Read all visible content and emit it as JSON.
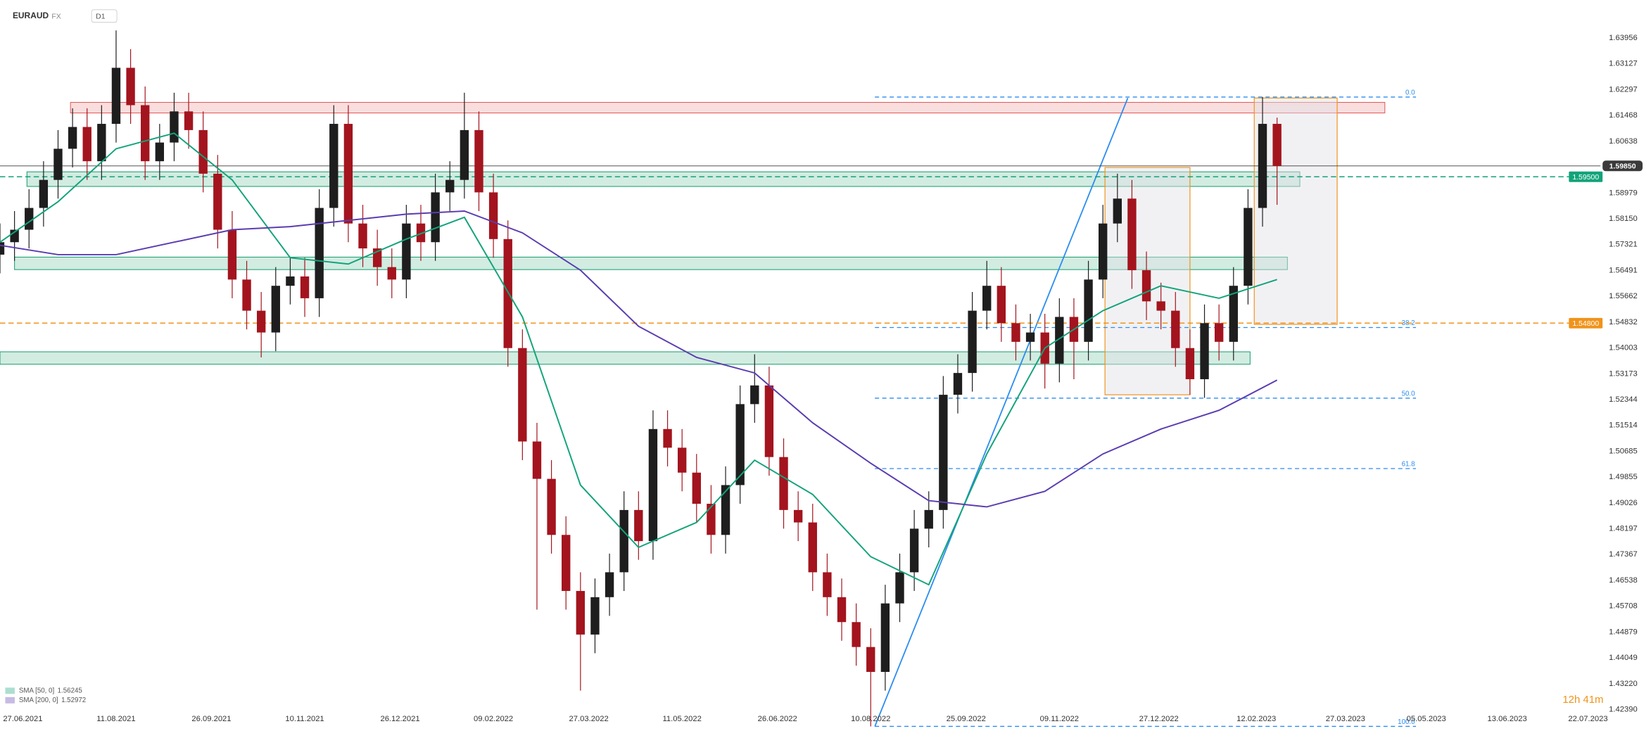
{
  "header": {
    "symbol": "EURAUD",
    "market": "FX",
    "interval": "D1"
  },
  "chart_data": {
    "type": "candlestick",
    "x": [
      "2021-06-16",
      "2021-06-23",
      "2021-06-30",
      "2021-07-07",
      "2021-07-14",
      "2021-07-21",
      "2021-07-28",
      "2021-08-04",
      "2021-08-11",
      "2021-08-18",
      "2021-08-25",
      "2021-09-01",
      "2021-09-08",
      "2021-09-15",
      "2021-09-22",
      "2021-09-29",
      "2021-10-06",
      "2021-10-13",
      "2021-10-20",
      "2021-10-27",
      "2021-11-03",
      "2021-11-10",
      "2021-11-17",
      "2021-11-24",
      "2021-12-01",
      "2021-12-08",
      "2021-12-15",
      "2021-12-22",
      "2021-12-29",
      "2022-01-05",
      "2022-01-12",
      "2022-01-19",
      "2022-01-26",
      "2022-02-02",
      "2022-02-09",
      "2022-02-16",
      "2022-02-23",
      "2022-03-02",
      "2022-03-09",
      "2022-03-16",
      "2022-03-23",
      "2022-03-30",
      "2022-04-06",
      "2022-04-13",
      "2022-04-20",
      "2022-04-27",
      "2022-05-04",
      "2022-05-11",
      "2022-05-18",
      "2022-05-25",
      "2022-06-01",
      "2022-06-08",
      "2022-06-15",
      "2022-06-22",
      "2022-06-29",
      "2022-07-06",
      "2022-07-13",
      "2022-07-20",
      "2022-07-27",
      "2022-08-03",
      "2022-08-10",
      "2022-08-17",
      "2022-08-24",
      "2022-08-31",
      "2022-09-07",
      "2022-09-14",
      "2022-09-21",
      "2022-09-28",
      "2022-10-05",
      "2022-10-12",
      "2022-10-19",
      "2022-10-26",
      "2022-11-02",
      "2022-11-09",
      "2022-11-16",
      "2022-11-23",
      "2022-11-30",
      "2022-12-07",
      "2022-12-14",
      "2022-12-21",
      "2022-12-28",
      "2023-01-04",
      "2023-01-11",
      "2023-01-18",
      "2023-01-25",
      "2023-02-01",
      "2023-02-08",
      "2023-02-15",
      "2023-02-22"
    ],
    "open": [
      1.57,
      1.574,
      1.578,
      1.585,
      1.594,
      1.604,
      1.611,
      1.6,
      1.612,
      1.63,
      1.618,
      1.6,
      1.606,
      1.616,
      1.61,
      1.596,
      1.578,
      1.562,
      1.552,
      1.545,
      1.56,
      1.563,
      1.556,
      1.585,
      1.612,
      1.58,
      1.572,
      1.566,
      1.562,
      1.58,
      1.574,
      1.59,
      1.594,
      1.61,
      1.59,
      1.575,
      1.54,
      1.51,
      1.498,
      1.48,
      1.462,
      1.448,
      1.46,
      1.468,
      1.488,
      1.478,
      1.514,
      1.508,
      1.5,
      1.49,
      1.48,
      1.496,
      1.522,
      1.528,
      1.505,
      1.488,
      1.484,
      1.468,
      1.46,
      1.452,
      1.444,
      1.436,
      1.458,
      1.468,
      1.482,
      1.488,
      1.525,
      1.532,
      1.552,
      1.56,
      1.548,
      1.542,
      1.545,
      1.535,
      1.55,
      1.542,
      1.562,
      1.58,
      1.588,
      1.565,
      1.555,
      1.552,
      1.54,
      1.53,
      1.548,
      1.542,
      1.56,
      1.585,
      1.612
    ],
    "high": [
      1.58,
      1.584,
      1.591,
      1.6,
      1.61,
      1.617,
      1.617,
      1.618,
      1.642,
      1.636,
      1.624,
      1.612,
      1.622,
      1.622,
      1.616,
      1.602,
      1.584,
      1.568,
      1.558,
      1.566,
      1.569,
      1.569,
      1.591,
      1.618,
      1.618,
      1.586,
      1.578,
      1.572,
      1.586,
      1.586,
      1.596,
      1.6,
      1.622,
      1.616,
      1.596,
      1.581,
      1.546,
      1.516,
      1.504,
      1.486,
      1.468,
      1.466,
      1.474,
      1.494,
      1.494,
      1.52,
      1.52,
      1.514,
      1.506,
      1.496,
      1.502,
      1.528,
      1.538,
      1.534,
      1.511,
      1.494,
      1.49,
      1.474,
      1.466,
      1.458,
      1.45,
      1.464,
      1.474,
      1.488,
      1.494,
      1.531,
      1.538,
      1.558,
      1.568,
      1.566,
      1.554,
      1.551,
      1.551,
      1.556,
      1.556,
      1.568,
      1.586,
      1.596,
      1.594,
      1.571,
      1.561,
      1.558,
      1.546,
      1.554,
      1.554,
      1.566,
      1.591,
      1.6206,
      1.614
    ],
    "low": [
      1.564,
      1.568,
      1.572,
      1.579,
      1.588,
      1.598,
      1.594,
      1.594,
      1.606,
      1.612,
      1.594,
      1.594,
      1.6,
      1.604,
      1.59,
      1.572,
      1.556,
      1.546,
      1.537,
      1.539,
      1.554,
      1.55,
      1.55,
      1.579,
      1.574,
      1.566,
      1.56,
      1.556,
      1.556,
      1.568,
      1.568,
      1.584,
      1.588,
      1.584,
      1.569,
      1.534,
      1.504,
      1.456,
      1.474,
      1.456,
      1.43,
      1.442,
      1.454,
      1.462,
      1.472,
      1.472,
      1.502,
      1.494,
      1.484,
      1.474,
      1.474,
      1.49,
      1.516,
      1.499,
      1.482,
      1.478,
      1.462,
      1.454,
      1.446,
      1.438,
      1.4185,
      1.43,
      1.452,
      1.462,
      1.476,
      1.482,
      1.519,
      1.526,
      1.546,
      1.542,
      1.536,
      1.536,
      1.527,
      1.529,
      1.53,
      1.536,
      1.556,
      1.574,
      1.559,
      1.549,
      1.546,
      1.534,
      1.525,
      1.524,
      1.536,
      1.536,
      1.554,
      1.579,
      1.586
    ],
    "close": [
      1.574,
      1.578,
      1.585,
      1.594,
      1.604,
      1.611,
      1.6,
      1.612,
      1.63,
      1.618,
      1.6,
      1.606,
      1.616,
      1.61,
      1.596,
      1.578,
      1.562,
      1.552,
      1.545,
      1.56,
      1.563,
      1.556,
      1.585,
      1.612,
      1.58,
      1.572,
      1.566,
      1.562,
      1.58,
      1.574,
      1.59,
      1.594,
      1.61,
      1.59,
      1.575,
      1.54,
      1.51,
      1.498,
      1.48,
      1.462,
      1.448,
      1.46,
      1.468,
      1.488,
      1.478,
      1.514,
      1.508,
      1.5,
      1.49,
      1.48,
      1.496,
      1.522,
      1.528,
      1.505,
      1.488,
      1.484,
      1.468,
      1.46,
      1.452,
      1.444,
      1.436,
      1.458,
      1.468,
      1.482,
      1.488,
      1.525,
      1.532,
      1.552,
      1.56,
      1.548,
      1.542,
      1.545,
      1.535,
      1.55,
      1.542,
      1.562,
      1.58,
      1.588,
      1.565,
      1.555,
      1.552,
      1.54,
      1.53,
      1.548,
      1.542,
      1.56,
      1.585,
      1.612,
      1.5985
    ],
    "up_color": "#1e1e1e",
    "down_color": "#a3141e",
    "ylim": [
      1.4171,
      1.6517
    ],
    "yticks": [
      1.63956,
      1.63127,
      1.62297,
      1.61468,
      1.60638,
      1.58979,
      {
        "value": 1.5815,
        "label": "1.58150"
      },
      1.57321,
      1.56491,
      1.55662,
      1.54832,
      1.54003,
      1.53173,
      1.52344,
      1.51514,
      1.50685,
      1.49855,
      1.49026,
      1.48197,
      1.47367,
      1.46538,
      1.45708,
      1.44879,
      1.44049,
      {
        "value": 1.4322,
        "label": "1.43220"
      },
      {
        "value": 1.4239,
        "label": "1.42390"
      }
    ],
    "xlim": [
      "2021-06-16",
      "2023-07-28"
    ],
    "xticks": [
      {
        "value": "2021-06-27",
        "label": "27.06.2021"
      },
      {
        "value": "2021-08-11",
        "label": "11.08.2021"
      },
      {
        "value": "2021-09-26",
        "label": "26.09.2021"
      },
      {
        "value": "2021-11-10",
        "label": "10.11.2021"
      },
      {
        "value": "2021-12-26",
        "label": "26.12.2021"
      },
      {
        "value": "2022-02-09",
        "label": "09.02.2022"
      },
      {
        "value": "2022-03-27",
        "label": "27.03.2022"
      },
      {
        "value": "2022-05-11",
        "label": "11.05.2022"
      },
      {
        "value": "2022-06-26",
        "label": "26.06.2022"
      },
      {
        "value": "2022-08-10",
        "label": "10.08.2022"
      },
      {
        "value": "2022-09-25",
        "label": "25.09.2022"
      },
      {
        "value": "2022-11-09",
        "label": "09.11.2022"
      },
      {
        "value": "2022-12-27",
        "label": "27.12.2022"
      },
      {
        "value": "2023-02-12",
        "label": "12.02.2023"
      },
      {
        "value": "2023-03-27",
        "label": "27.03.2023"
      },
      {
        "value": "2023-05-05",
        "label": "05.05.2023"
      },
      {
        "value": "2023-06-13",
        "label": "13.06.2023"
      },
      {
        "value": "2023-07-22",
        "label": "22.07.2023"
      }
    ],
    "overlays": [
      {
        "name": "SMA [50, 0]",
        "value": 1.56245,
        "color": "#12a37a",
        "x": [
          "2021-06-16",
          "2021-07-14",
          "2021-08-11",
          "2021-09-08",
          "2021-10-06",
          "2021-11-03",
          "2021-12-01",
          "2021-12-29",
          "2022-01-26",
          "2022-02-23",
          "2022-03-23",
          "2022-04-20",
          "2022-05-18",
          "2022-06-15",
          "2022-07-13",
          "2022-08-10",
          "2022-09-07",
          "2022-10-05",
          "2022-11-02",
          "2022-11-30",
          "2022-12-28",
          "2023-01-25",
          "2023-02-22"
        ],
        "values": [
          1.574,
          1.587,
          1.604,
          1.609,
          1.594,
          1.569,
          1.567,
          1.575,
          1.582,
          1.55,
          1.496,
          1.476,
          1.484,
          1.504,
          1.493,
          1.473,
          1.464,
          1.506,
          1.54,
          1.552,
          1.56,
          1.556,
          1.562
        ]
      },
      {
        "name": "SMA [200, 0]",
        "value": 1.52972,
        "color": "#5b3cb0",
        "x": [
          "2021-06-16",
          "2021-07-14",
          "2021-08-11",
          "2021-09-08",
          "2021-10-06",
          "2021-11-03",
          "2021-12-01",
          "2021-12-29",
          "2022-01-26",
          "2022-02-23",
          "2022-03-23",
          "2022-04-20",
          "2022-05-18",
          "2022-06-15",
          "2022-07-13",
          "2022-08-10",
          "2022-09-07",
          "2022-10-05",
          "2022-11-02",
          "2022-11-30",
          "2022-12-28",
          "2023-01-25",
          "2023-02-22"
        ],
        "values": [
          1.573,
          1.57,
          1.57,
          1.574,
          1.578,
          1.579,
          1.581,
          1.583,
          1.584,
          1.577,
          1.565,
          1.547,
          1.537,
          1.532,
          1.516,
          1.503,
          1.491,
          1.489,
          1.494,
          1.506,
          1.514,
          1.52,
          1.5297
        ]
      }
    ],
    "levels": [
      {
        "value": 1.5985,
        "label": "1.59850",
        "color": "#3a3a3a",
        "dash": false
      },
      {
        "value": 1.595,
        "label": "1.59500",
        "color": "#12a37a",
        "dash": true
      },
      {
        "value": 1.548,
        "label": "1.54800",
        "color": "#f0931c",
        "dash": true
      }
    ],
    "zones": [
      {
        "x": [
          "2021-07-20",
          "2023-04-15"
        ],
        "y": [
          1.6155,
          1.6189
        ],
        "color": "#e45b5b"
      },
      {
        "x": [
          "2021-06-29",
          "2023-03-05"
        ],
        "y": [
          1.5919,
          1.5966
        ],
        "color": "#1fa070"
      },
      {
        "x": [
          "2021-06-23",
          "2023-02-27"
        ],
        "y": [
          1.5652,
          1.5692
        ],
        "color": "#1fa070"
      },
      {
        "x": [
          "2021-06-16",
          "2023-02-09"
        ],
        "y": [
          1.5348,
          1.5388
        ],
        "color": "#1fa070"
      }
    ],
    "boxes": [
      {
        "x": [
          "2022-12-01",
          "2023-01-11"
        ],
        "y": [
          1.525,
          1.598
        ],
        "color": "#f0931c"
      },
      {
        "x": [
          "2023-02-11",
          "2023-03-23"
        ],
        "y": [
          1.5476,
          1.6203
        ],
        "color": "#f0931c"
      }
    ],
    "fib": {
      "color": "#2a8cf0",
      "x": [
        "2022-08-12",
        "2023-04-30"
      ],
      "levels": [
        {
          "label": "0.0",
          "value": 1.6206
        },
        {
          "label": "38.2",
          "value": 1.5466
        },
        {
          "label": "50.0",
          "value": 1.5239
        },
        {
          "label": "61.8",
          "value": 1.5013
        },
        {
          "label": "100.0",
          "value": 1.4185
        }
      ]
    },
    "trendline": {
      "color": "#2a8cf0",
      "x": [
        "2022-08-12",
        "2022-12-12"
      ],
      "values": [
        1.4185,
        1.6203
      ]
    }
  },
  "countdown": "12h 41m"
}
